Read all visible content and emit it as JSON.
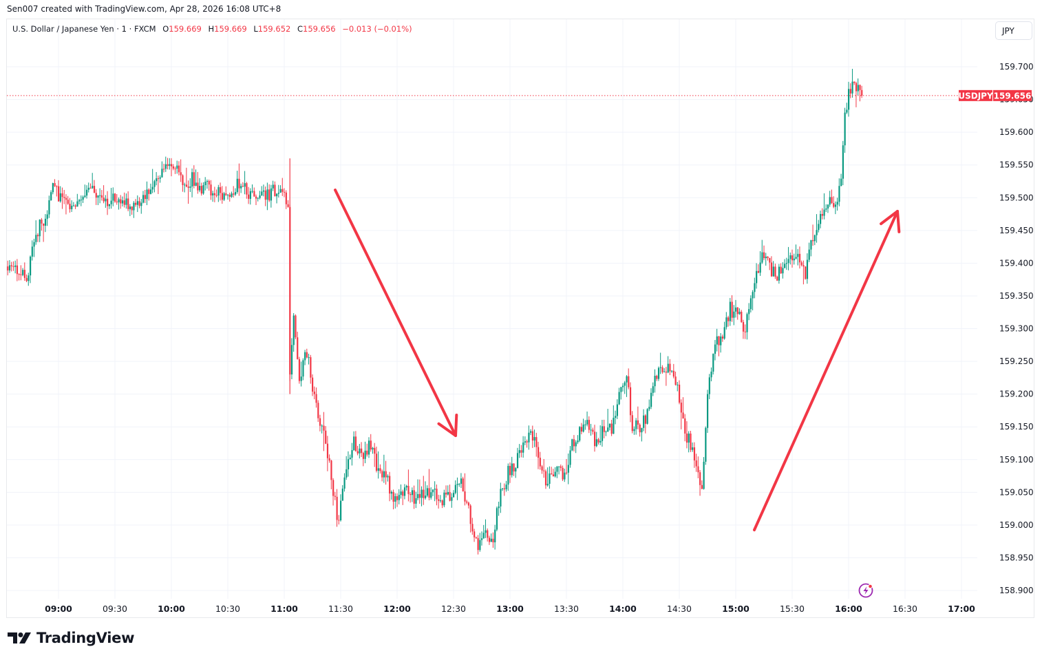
{
  "attribution": "Sen007 created with TradingView.com, Apr 28, 2026 16:08 UTC+8",
  "legend": {
    "symbol_name": "U.S. Dollar / Japanese Yen",
    "interval": "1",
    "exchange": "FXCM",
    "open_label": "O",
    "open": "159.669",
    "high_label": "H",
    "high": "159.669",
    "low_label": "L",
    "low": "159.652",
    "close_label": "C",
    "close": "159.656",
    "change": "−0.013 (−0.01%)"
  },
  "currency_button": "JPY",
  "last_price": {
    "symbol": "USDJPY",
    "value": "159.656",
    "color": "#f23645"
  },
  "colors": {
    "up": "#089981",
    "down": "#f23645",
    "grid": "#f0f3fa",
    "arrow": "#f23645",
    "accent": "#f23645"
  },
  "logo": {
    "text": "TradingView",
    "icon": "tradingview-logo-icon"
  },
  "chart_data": {
    "type": "candlestick",
    "title": "U.S. Dollar / Japanese Yen · 1 · FXCM",
    "xlabel": "",
    "ylabel": "JPY",
    "ylim": [
      158.88,
      159.73
    ],
    "y_ticks": [
      "159.700",
      "159.650",
      "159.600",
      "159.550",
      "159.500",
      "159.450",
      "159.400",
      "159.350",
      "159.300",
      "159.250",
      "159.200",
      "159.150",
      "159.100",
      "159.050",
      "159.000",
      "158.950",
      "158.900"
    ],
    "x_ticks": [
      {
        "label": "09:00",
        "major": true
      },
      {
        "label": "09:30",
        "major": false
      },
      {
        "label": "10:00",
        "major": true
      },
      {
        "label": "10:30",
        "major": false
      },
      {
        "label": "11:00",
        "major": true
      },
      {
        "label": "11:30",
        "major": false
      },
      {
        "label": "12:00",
        "major": true
      },
      {
        "label": "12:30",
        "major": false
      },
      {
        "label": "13:00",
        "major": true
      },
      {
        "label": "13:30",
        "major": false
      },
      {
        "label": "14:00",
        "major": true
      },
      {
        "label": "14:30",
        "major": false
      },
      {
        "label": "15:00",
        "major": true
      },
      {
        "label": "15:30",
        "major": false
      },
      {
        "label": "16:00",
        "major": true
      },
      {
        "label": "16:30",
        "major": false
      },
      {
        "label": "17:00",
        "major": true
      }
    ],
    "grid": true,
    "start_time": "08:33",
    "last_close": 159.656,
    "price_path_keyframes": [
      [
        "08:33",
        159.395
      ],
      [
        "08:41",
        159.39
      ],
      [
        "08:45",
        159.38
      ],
      [
        "08:47",
        159.42
      ],
      [
        "08:50",
        159.45
      ],
      [
        "08:55",
        159.48
      ],
      [
        "08:58",
        159.52
      ],
      [
        "09:02",
        159.5
      ],
      [
        "09:07",
        159.48
      ],
      [
        "09:12",
        159.5
      ],
      [
        "09:18",
        159.51
      ],
      [
        "09:25",
        159.49
      ],
      [
        "09:32",
        159.5
      ],
      [
        "09:36",
        159.49
      ],
      [
        "09:42",
        159.48
      ],
      [
        "09:46",
        159.5
      ],
      [
        "09:50",
        159.52
      ],
      [
        "09:55",
        159.54
      ],
      [
        "10:00",
        159.555
      ],
      [
        "10:03",
        159.545
      ],
      [
        "10:08",
        159.52
      ],
      [
        "10:12",
        159.53
      ],
      [
        "10:16",
        159.51
      ],
      [
        "10:20",
        159.515
      ],
      [
        "10:28",
        159.505
      ],
      [
        "10:33",
        159.51
      ],
      [
        "10:38",
        159.525
      ],
      [
        "10:42",
        159.505
      ],
      [
        "10:50",
        159.5
      ],
      [
        "10:55",
        159.51
      ],
      [
        "11:00",
        159.505
      ],
      [
        "11:03",
        159.495
      ],
      [
        "11:04",
        159.23
      ],
      [
        "11:06",
        159.32
      ],
      [
        "11:09",
        159.22
      ],
      [
        "11:13",
        159.265
      ],
      [
        "11:17",
        159.19
      ],
      [
        "11:22",
        159.14
      ],
      [
        "11:26",
        159.07
      ],
      [
        "11:30",
        159.0
      ],
      [
        "11:33",
        159.08
      ],
      [
        "11:38",
        159.13
      ],
      [
        "11:42",
        159.1
      ],
      [
        "11:47",
        159.125
      ],
      [
        "11:51",
        159.08
      ],
      [
        "11:55",
        159.07
      ],
      [
        "12:00",
        159.04
      ],
      [
        "12:05",
        159.055
      ],
      [
        "12:10",
        159.04
      ],
      [
        "12:15",
        159.045
      ],
      [
        "12:20",
        159.05
      ],
      [
        "12:25",
        159.04
      ],
      [
        "12:30",
        159.05
      ],
      [
        "12:35",
        159.065
      ],
      [
        "12:38",
        159.03
      ],
      [
        "12:41",
        159.0
      ],
      [
        "12:44",
        158.97
      ],
      [
        "12:48",
        158.99
      ],
      [
        "12:52",
        158.98
      ],
      [
        "12:56",
        159.05
      ],
      [
        "13:00",
        159.08
      ],
      [
        "13:04",
        159.09
      ],
      [
        "13:08",
        159.13
      ],
      [
        "13:12",
        159.14
      ],
      [
        "13:16",
        159.11
      ],
      [
        "13:20",
        159.065
      ],
      [
        "13:25",
        159.08
      ],
      [
        "13:30",
        159.08
      ],
      [
        "13:34",
        159.12
      ],
      [
        "13:38",
        159.14
      ],
      [
        "13:43",
        159.155
      ],
      [
        "13:47",
        159.12
      ],
      [
        "13:51",
        159.15
      ],
      [
        "13:55",
        159.15
      ],
      [
        "14:00",
        159.21
      ],
      [
        "14:03",
        159.23
      ],
      [
        "14:06",
        159.15
      ],
      [
        "14:10",
        159.15
      ],
      [
        "14:14",
        159.17
      ],
      [
        "14:18",
        159.22
      ],
      [
        "14:22",
        159.24
      ],
      [
        "14:26",
        159.245
      ],
      [
        "14:30",
        159.21
      ],
      [
        "14:34",
        159.14
      ],
      [
        "14:38",
        159.12
      ],
      [
        "14:41",
        159.08
      ],
      [
        "14:43",
        159.045
      ],
      [
        "14:46",
        159.2
      ],
      [
        "14:50",
        159.28
      ],
      [
        "14:54",
        159.29
      ],
      [
        "14:58",
        159.33
      ],
      [
        "15:02",
        159.32
      ],
      [
        "15:06",
        159.3
      ],
      [
        "15:10",
        159.35
      ],
      [
        "15:14",
        159.41
      ],
      [
        "15:18",
        159.4
      ],
      [
        "15:22",
        159.38
      ],
      [
        "15:26",
        159.39
      ],
      [
        "15:30",
        159.41
      ],
      [
        "15:34",
        159.42
      ],
      [
        "15:38",
        159.38
      ],
      [
        "15:42",
        159.44
      ],
      [
        "15:46",
        159.47
      ],
      [
        "15:50",
        159.5
      ],
      [
        "15:54",
        159.49
      ],
      [
        "15:57",
        159.53
      ],
      [
        "15:59",
        159.63
      ],
      [
        "16:02",
        159.67
      ],
      [
        "16:05",
        159.665
      ],
      [
        "16:08",
        159.656
      ]
    ],
    "annotations": [
      {
        "type": "arrow",
        "name": "down-trend-arrow",
        "from": [
          487,
          276
        ],
        "to": [
          662,
          633
        ],
        "color": "#f23645"
      },
      {
        "type": "arrow",
        "name": "up-trend-arrow",
        "from": [
          1096,
          770
        ],
        "to": [
          1304,
          307
        ],
        "color": "#f23645"
      }
    ]
  }
}
